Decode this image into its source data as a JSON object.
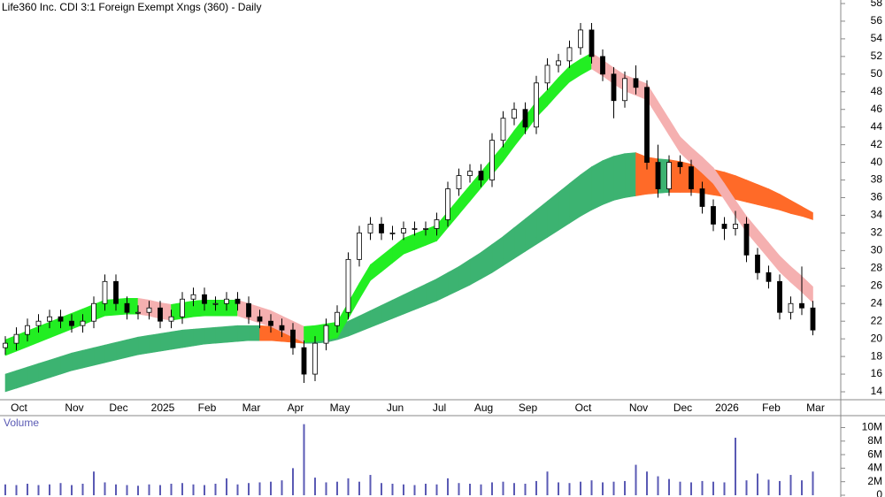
{
  "chart_data": [
    {
      "type": "candlestick",
      "title": "Life360 Inc. CDI 3:1 Foreign Exempt Xngs (360) - Daily",
      "categories": [
        null,
        "Oct",
        null,
        null,
        null,
        null,
        "Nov",
        null,
        null,
        null,
        "Dec",
        null,
        null,
        null,
        "2025",
        null,
        null,
        null,
        "Feb",
        null,
        null,
        null,
        "Mar",
        null,
        null,
        null,
        "Apr",
        null,
        null,
        null,
        "May",
        null,
        null,
        null,
        null,
        "Jun",
        null,
        null,
        null,
        "Jul",
        null,
        null,
        null,
        "Aug",
        null,
        null,
        null,
        "Sep",
        null,
        null,
        null,
        null,
        "Oct",
        null,
        null,
        null,
        null,
        "Nov",
        null,
        null,
        null,
        "Dec",
        null,
        null,
        null,
        "2026",
        null,
        null,
        null,
        "Feb",
        null,
        null,
        null,
        "Mar"
      ],
      "open": [
        19,
        19.5,
        20.5,
        21.5,
        22,
        22.5,
        22,
        21.5,
        22,
        24,
        26.5,
        24,
        23,
        23,
        23.5,
        22,
        22.5,
        24.5,
        25,
        24,
        24,
        24.5,
        24,
        22.5,
        22,
        21.5,
        21,
        19,
        16,
        19.5,
        21.5,
        23,
        29,
        32,
        33,
        32,
        32,
        32.5,
        32.5,
        32.5,
        33.5,
        37,
        38.5,
        39,
        38,
        42.5,
        45,
        46,
        44,
        49,
        51,
        51.5,
        53,
        55,
        52,
        50,
        47,
        49.5,
        48.5,
        40,
        37,
        40,
        39.5,
        37,
        35,
        33,
        32.5,
        33,
        29.5,
        27.5,
        26.5,
        23,
        24,
        23.5
      ],
      "high": [
        20.3,
        21.3,
        22.3,
        22.8,
        23.3,
        23.3,
        22.8,
        22.8,
        24.8,
        27.3,
        27.3,
        24.8,
        23.8,
        24.3,
        24.3,
        23.3,
        25.3,
        25.8,
        25.8,
        24.8,
        25.3,
        25.3,
        24.8,
        23.3,
        22.8,
        22.3,
        21.8,
        19.8,
        20.3,
        22.3,
        23.8,
        29.8,
        32.8,
        33.8,
        33.8,
        32.8,
        33.3,
        33.3,
        33.3,
        34.3,
        37.8,
        39.3,
        39.8,
        39.8,
        43.3,
        45.8,
        46.8,
        46.8,
        49.8,
        51.8,
        52.3,
        53.8,
        55.8,
        55.8,
        52.8,
        50.8,
        50.3,
        51,
        49.3,
        42,
        40.8,
        40.8,
        40.3,
        37.8,
        35.8,
        33.8,
        34.5,
        33.8,
        30.3,
        28.3,
        27.3,
        24.8,
        28.2,
        24.3
      ],
      "low": [
        18.2,
        18.7,
        19.7,
        20.7,
        21.2,
        21.2,
        20.7,
        20.7,
        21.2,
        23.2,
        23.2,
        22.2,
        22.2,
        22.2,
        21.2,
        21.2,
        21.7,
        23.7,
        23.2,
        23.2,
        23.2,
        23.2,
        21.7,
        21.2,
        20.7,
        20.2,
        18.2,
        15,
        15.2,
        18.7,
        20.7,
        22.2,
        28.2,
        31.2,
        31.2,
        31.2,
        31.2,
        31.7,
        31.7,
        31.7,
        32.7,
        36.2,
        37.7,
        37.2,
        37.2,
        41.7,
        44.2,
        43.2,
        43.2,
        48.2,
        50.2,
        50.7,
        52.2,
        51.2,
        49.2,
        45,
        46.2,
        47.7,
        39.2,
        36,
        36.2,
        38.7,
        36.2,
        34.2,
        32.2,
        31.2,
        31.7,
        28.7,
        26.7,
        25.7,
        22.2,
        22.2,
        22.7,
        20.4
      ],
      "close": [
        19.5,
        20.5,
        21.5,
        22,
        22.5,
        22,
        21.5,
        22,
        24,
        26.5,
        24,
        23,
        23,
        23.5,
        22,
        22.5,
        24.5,
        25,
        24,
        24,
        24.5,
        24,
        22.5,
        22,
        21.5,
        21,
        19,
        16,
        19.5,
        21.5,
        23,
        29,
        32,
        33,
        32,
        32,
        32.5,
        32.5,
        32.5,
        33.5,
        37,
        38.5,
        39,
        38,
        42.5,
        45,
        46,
        44,
        49,
        51,
        51.5,
        53,
        55,
        52,
        50,
        47,
        49.5,
        48.5,
        40,
        37,
        40,
        39.5,
        37,
        35,
        33,
        32.5,
        33,
        29.5,
        27.5,
        26.5,
        23,
        24,
        23.5,
        21
      ],
      "up_color": "#ffffff",
      "down_color": "#000000",
      "bands": [
        {
          "upper": [
            16,
            16.4,
            16.8,
            17.2,
            17.6,
            18,
            18.4,
            18.7,
            19,
            19.3,
            19.6,
            19.9,
            20.2,
            20.4,
            20.6,
            20.8,
            21,
            21.1,
            21.2,
            21.3,
            21.4,
            21.5,
            21.5,
            21.5,
            21.4,
            21.3,
            21.2,
            21.1,
            21.1,
            21.2,
            21.5,
            22,
            22.6,
            23.2,
            23.8,
            24.4,
            25,
            25.6,
            26.2,
            26.8,
            27.5,
            28.2,
            29,
            29.8,
            30.7,
            31.6,
            32.6,
            33.6,
            34.6,
            35.6,
            36.6,
            37.6,
            38.6,
            39.5,
            40.2,
            40.7,
            41,
            41.1,
            40.6,
            40.4,
            40.3,
            40.1,
            39.8,
            39.5,
            39.2,
            38.9,
            38.5,
            38,
            37.5,
            37,
            36.4,
            35.7,
            35,
            34.3
          ],
          "lower": [
            14,
            14.4,
            14.8,
            15.2,
            15.6,
            16,
            16.4,
            16.7,
            17,
            17.3,
            17.6,
            17.9,
            18.2,
            18.4,
            18.6,
            18.8,
            19,
            19.2,
            19.4,
            19.5,
            19.6,
            19.7,
            19.8,
            19.8,
            19.8,
            19.7,
            19.6,
            19.5,
            19.5,
            19.6,
            19.9,
            20.3,
            20.8,
            21.3,
            21.8,
            22.3,
            22.8,
            23.3,
            23.8,
            24.3,
            24.9,
            25.5,
            26.1,
            26.8,
            27.5,
            28.3,
            29.1,
            29.9,
            30.7,
            31.5,
            32.3,
            33.1,
            33.9,
            34.6,
            35.2,
            35.7,
            36,
            36.2,
            36.4,
            36.5,
            36.6,
            36.6,
            36.6,
            36.5,
            36.3,
            36.1,
            35.8,
            35.5,
            35.2,
            34.9,
            34.6,
            34.2,
            33.9,
            33.5
          ],
          "up_color": "#3cb371",
          "down_color": "#ff6a28"
        },
        {
          "upper": [
            19.9,
            20.4,
            20.9,
            21.4,
            21.9,
            22.4,
            22.9,
            23.4,
            23.9,
            24.4,
            24.5,
            24.6,
            24.6,
            24.4,
            24.1,
            23.9,
            24.1,
            24.3,
            24.4,
            24.4,
            24.4,
            24.4,
            24,
            23.6,
            23.2,
            22.6,
            22,
            21.4,
            21.5,
            21.7,
            21.9,
            24.1,
            26.3,
            28.4,
            29.4,
            30.4,
            31.4,
            31.9,
            32.4,
            32.9,
            34.4,
            35.9,
            37.4,
            38.9,
            40.4,
            41.9,
            43.6,
            45.2,
            46.9,
            48.2,
            49.6,
            50.9,
            51.7,
            52.4,
            51.6,
            50.7,
            49.9,
            49.4,
            48.9,
            46.9,
            44.9,
            42.9,
            41.7,
            40.6,
            39.4,
            37.6,
            35.7,
            33.9,
            32.4,
            30.9,
            29.4,
            28.2,
            27.1,
            25.9
          ],
          "lower": [
            18.1,
            18.6,
            19.1,
            19.6,
            20.1,
            20.6,
            21.1,
            21.6,
            22.1,
            22.6,
            22.7,
            22.8,
            22.8,
            22.6,
            22.3,
            22.1,
            22.3,
            22.5,
            22.6,
            22.6,
            22.6,
            22.6,
            22.2,
            21.8,
            21.4,
            20.8,
            20.2,
            19.6,
            19.7,
            19.9,
            20.1,
            22.3,
            24.5,
            26.6,
            27.6,
            28.6,
            29.6,
            30.1,
            30.6,
            31.1,
            32.6,
            34.1,
            35.6,
            37.1,
            38.6,
            40.1,
            41.8,
            43.4,
            45.1,
            46.4,
            47.8,
            49.1,
            49.9,
            50.6,
            49.8,
            48.9,
            48.1,
            47.6,
            47.1,
            45.1,
            43.1,
            41.1,
            39.9,
            38.8,
            37.6,
            35.8,
            33.9,
            32.1,
            30.6,
            29.1,
            27.6,
            26.4,
            25.3,
            24.1
          ],
          "up_color": "#22ee22",
          "down_color": "#f5b0b0"
        }
      ],
      "ylim": [
        13.1,
        58.4
      ],
      "yticks": [
        14,
        16,
        18,
        20,
        22,
        24,
        26,
        28,
        30,
        32,
        34,
        36,
        38,
        40,
        42,
        44,
        46,
        48,
        50,
        52,
        54,
        56,
        58
      ]
    },
    {
      "type": "bar",
      "title": "Volume",
      "values": [
        1600000,
        1500000,
        1700000,
        1500000,
        1600000,
        1800000,
        1500000,
        1700000,
        3500000,
        1900000,
        1600000,
        1500000,
        1400000,
        1600000,
        1500000,
        1700000,
        1800000,
        1600000,
        1500000,
        1700000,
        2500000,
        1600000,
        1800000,
        1900000,
        2000000,
        2200000,
        4000000,
        10500000,
        2600000,
        1900000,
        2000000,
        2500000,
        2000000,
        3000000,
        1800000,
        1700000,
        1600000,
        1500000,
        1700000,
        1600000,
        2500000,
        1800000,
        1700000,
        1600000,
        1900000,
        2000000,
        1800000,
        1700000,
        2100000,
        3500000,
        1900000,
        1800000,
        2000000,
        2200000,
        1900000,
        2000000,
        2100000,
        4500000,
        3500000,
        2800000,
        2400000,
        2000000,
        1900000,
        2100000,
        2000000,
        1900000,
        8500000,
        2200000,
        3200000,
        2300000,
        2100000,
        3000000,
        2200000,
        3500000
      ],
      "color": "#5a5ab4",
      "ylim": [
        0,
        11500000
      ],
      "yticks": [
        0,
        {
          "value": 2000000,
          "label": "2M"
        },
        {
          "value": 4000000,
          "label": "4M"
        },
        {
          "value": 6000000,
          "label": "6M"
        },
        {
          "value": 8000000,
          "label": "8M"
        },
        {
          "value": 10000000,
          "label": "10M"
        }
      ]
    }
  ]
}
